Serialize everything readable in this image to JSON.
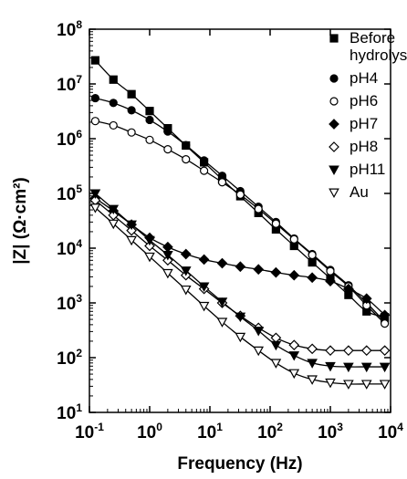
{
  "chart_data": {
    "type": "scatter",
    "x_scale": "log",
    "y_scale": "log",
    "xlim": [
      0.1,
      10000
    ],
    "ylim": [
      10,
      100000000
    ],
    "xlabel": "Frequency (Hz)",
    "ylabel": "|Z| (Ω·cm²)",
    "x_ticks": [
      {
        "base": "10",
        "exp": "-1",
        "value": 0.1
      },
      {
        "base": "10",
        "exp": "0",
        "value": 1
      },
      {
        "base": "10",
        "exp": "1",
        "value": 10
      },
      {
        "base": "10",
        "exp": "2",
        "value": 100
      },
      {
        "base": "10",
        "exp": "3",
        "value": 1000
      },
      {
        "base": "10",
        "exp": "4",
        "value": 10000
      }
    ],
    "y_ticks": [
      {
        "base": "10",
        "exp": "1",
        "value": 10
      },
      {
        "base": "10",
        "exp": "2",
        "value": 100
      },
      {
        "base": "10",
        "exp": "3",
        "value": 1000
      },
      {
        "base": "10",
        "exp": "4",
        "value": 10000
      },
      {
        "base": "10",
        "exp": "5",
        "value": 100000
      },
      {
        "base": "10",
        "exp": "6",
        "value": 1000000
      },
      {
        "base": "10",
        "exp": "7",
        "value": 10000000
      },
      {
        "base": "10",
        "exp": "8",
        "value": 100000000
      }
    ],
    "legend_position": "top-right",
    "fit_lines": true,
    "series": [
      {
        "name": "Before hydrolysis",
        "legend_lines": [
          "Before",
          "hydrolysis"
        ],
        "marker": "square-filled",
        "x": [
          0.125,
          0.25,
          0.5,
          1,
          2,
          4,
          8,
          16,
          32,
          64,
          125,
          250,
          500,
          1000,
          2000,
          4000,
          8000
        ],
        "y": [
          27000000,
          12000000,
          6500000,
          3200000,
          1550000,
          750000,
          370000,
          180000,
          89000,
          44000,
          22000,
          11000,
          5500,
          2800,
          1400,
          700,
          550
        ]
      },
      {
        "name": "pH4",
        "legend_lines": [
          "pH4"
        ],
        "marker": "circle-filled",
        "x": [
          0.125,
          0.25,
          0.5,
          1,
          2,
          4,
          8,
          16,
          32,
          64,
          125,
          250,
          500,
          1000,
          2000,
          4000,
          8000
        ],
        "y": [
          5500000,
          4500000,
          3300000,
          2200000,
          1350000,
          760000,
          400000,
          210000,
          110000,
          57000,
          30000,
          15000,
          7800,
          4000,
          2100,
          1000,
          450
        ]
      },
      {
        "name": "pH6",
        "legend_lines": [
          "pH6"
        ],
        "marker": "circle-open",
        "x": [
          0.125,
          0.25,
          0.5,
          1,
          2,
          4,
          8,
          16,
          32,
          64,
          125,
          250,
          500,
          1000,
          2000,
          4000,
          8000
        ],
        "y": [
          2100000,
          1750000,
          1300000,
          950000,
          640000,
          420000,
          260000,
          160000,
          95000,
          52000,
          28000,
          14500,
          7500,
          3800,
          2000,
          900,
          420
        ]
      },
      {
        "name": "pH7",
        "legend_lines": [
          "pH7"
        ],
        "marker": "diamond-filled",
        "x": [
          0.125,
          0.25,
          0.5,
          1,
          2,
          4,
          8,
          16,
          32,
          64,
          125,
          250,
          500,
          1000,
          2000,
          4000,
          8000
        ],
        "y": [
          82000,
          48000,
          27000,
          15500,
          10500,
          7800,
          6200,
          5300,
          4600,
          4100,
          3600,
          3200,
          2900,
          2500,
          1800,
          1200,
          600
        ]
      },
      {
        "name": "pH8",
        "legend_lines": [
          "pH8"
        ],
        "marker": "diamond-open",
        "x": [
          0.125,
          0.25,
          0.5,
          1,
          2,
          4,
          8,
          16,
          32,
          64,
          125,
          250,
          500,
          1000,
          2000,
          4000,
          8000
        ],
        "y": [
          75000,
          40000,
          21000,
          11000,
          6000,
          3200,
          1800,
          1000,
          580,
          350,
          230,
          170,
          145,
          135,
          135,
          135,
          135
        ]
      },
      {
        "name": "pH11",
        "legend_lines": [
          "pH11"
        ],
        "marker": "triangle-down-filled",
        "x": [
          0.125,
          0.25,
          0.5,
          1,
          2,
          4,
          8,
          16,
          32,
          64,
          125,
          250,
          500,
          1000,
          2000,
          4000,
          8000
        ],
        "y": [
          100000,
          52000,
          27000,
          14000,
          7500,
          3900,
          2000,
          1050,
          560,
          310,
          170,
          110,
          80,
          70,
          68,
          68,
          68
        ]
      },
      {
        "name": "Au",
        "legend_lines": [
          "Au"
        ],
        "marker": "triangle-down-open",
        "x": [
          0.125,
          0.25,
          0.5,
          1,
          2,
          4,
          8,
          16,
          32,
          64,
          125,
          250,
          500,
          1000,
          2000,
          4000,
          8000
        ],
        "y": [
          55000,
          28000,
          14000,
          7000,
          3500,
          1750,
          880,
          450,
          240,
          135,
          80,
          52,
          40,
          35,
          33,
          33,
          33
        ]
      }
    ]
  }
}
